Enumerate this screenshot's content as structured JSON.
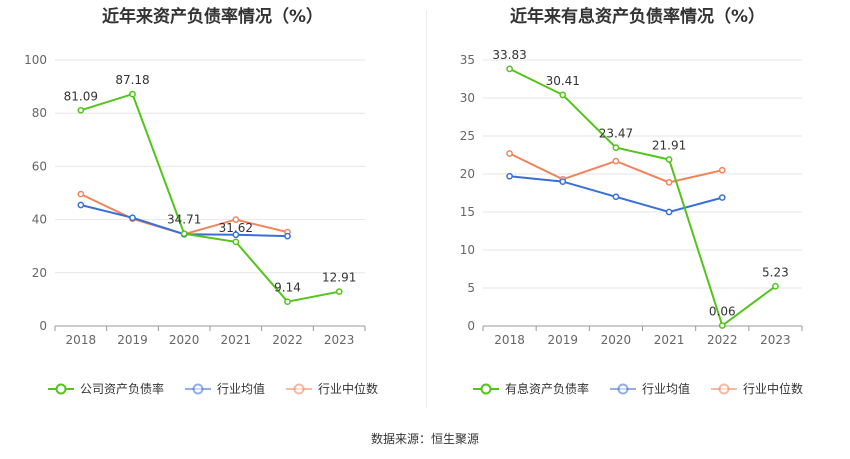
{
  "source_text": "数据来源：恒生聚源",
  "chart_data": [
    {
      "type": "line",
      "title": "近年来资产负债率情况（%）",
      "xlabel": "",
      "ylabel": "",
      "categories": [
        "2018",
        "2019",
        "2020",
        "2021",
        "2022",
        "2023"
      ],
      "ylim": [
        0,
        100
      ],
      "yticks": [
        0,
        20,
        40,
        60,
        80,
        100
      ],
      "ytick_labels": [
        "0",
        "20",
        "40",
        "60",
        "80",
        "100"
      ],
      "grid": true,
      "legend_position": "bottom",
      "series": [
        {
          "name": "公司资产负债率",
          "color": "#52c41a",
          "values": [
            81.09,
            87.18,
            34.71,
            31.62,
            9.14,
            12.91
          ],
          "labels": [
            "81.09",
            "87.18",
            "34.71",
            "31.62",
            "9.14",
            "12.91"
          ]
        },
        {
          "name": "行业均值",
          "color": "#3a6fd8",
          "values": [
            45.5,
            40.7,
            34.5,
            34.3,
            33.8,
            null
          ]
        },
        {
          "name": "行业中位数",
          "color": "#f0845c",
          "values": [
            49.6,
            40.3,
            34.5,
            40.0,
            35.3,
            null
          ]
        }
      ]
    },
    {
      "type": "line",
      "title": "近年来有息资产负债率情况（%）",
      "xlabel": "",
      "ylabel": "",
      "categories": [
        "2018",
        "2019",
        "2020",
        "2021",
        "2022",
        "2023"
      ],
      "ylim": [
        0,
        35
      ],
      "yticks": [
        0,
        5,
        10,
        15,
        20,
        25,
        30,
        35
      ],
      "ytick_labels": [
        "0",
        "5",
        "10",
        "15",
        "20",
        "25",
        "30",
        "35"
      ],
      "grid": true,
      "legend_position": "bottom",
      "series": [
        {
          "name": "有息资产负债率",
          "color": "#52c41a",
          "values": [
            33.83,
            30.41,
            23.47,
            21.91,
            0.06,
            5.23
          ],
          "labels": [
            "33.83",
            "30.41",
            "23.47",
            "21.91",
            "0.06",
            "5.23"
          ]
        },
        {
          "name": "行业均值",
          "color": "#3a6fd8",
          "values": [
            19.7,
            19.0,
            17.0,
            15.0,
            16.9,
            null
          ]
        },
        {
          "name": "行业中位数",
          "color": "#f0845c",
          "values": [
            22.7,
            19.3,
            21.7,
            18.9,
            20.5,
            null
          ]
        }
      ]
    }
  ]
}
